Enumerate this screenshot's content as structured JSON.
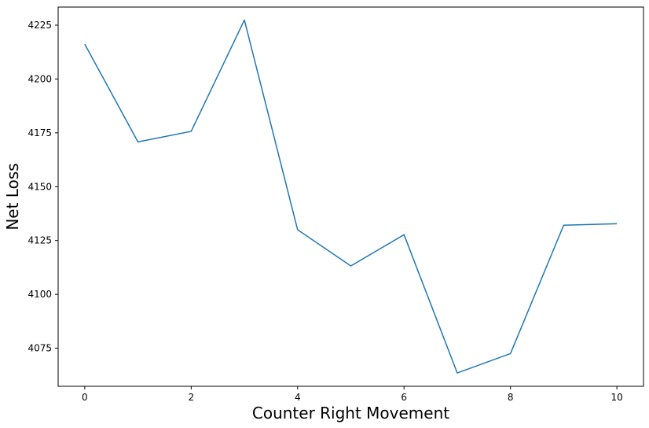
{
  "chart_data": {
    "type": "line",
    "title": "",
    "xlabel": "Counter Right Movement",
    "ylabel": "Net Loss",
    "x": [
      0,
      1,
      2,
      3,
      4,
      5,
      6,
      7,
      8,
      9,
      10
    ],
    "series": [
      {
        "values": [
          4216.2,
          4170.8,
          4175.7,
          4227.4,
          4130.0,
          4113.2,
          4127.7,
          4063.5,
          4072.5,
          4132.1,
          4132.8
        ],
        "color": "#1f77b4"
      }
    ],
    "xlim": [
      -0.5,
      10.5
    ],
    "ylim": [
      4057.3,
      4233.4
    ],
    "xticks": [
      0,
      2,
      4,
      6,
      8,
      10
    ],
    "yticks": [
      4075,
      4100,
      4125,
      4150,
      4175,
      4200,
      4225
    ],
    "grid": false,
    "legend": "none"
  }
}
